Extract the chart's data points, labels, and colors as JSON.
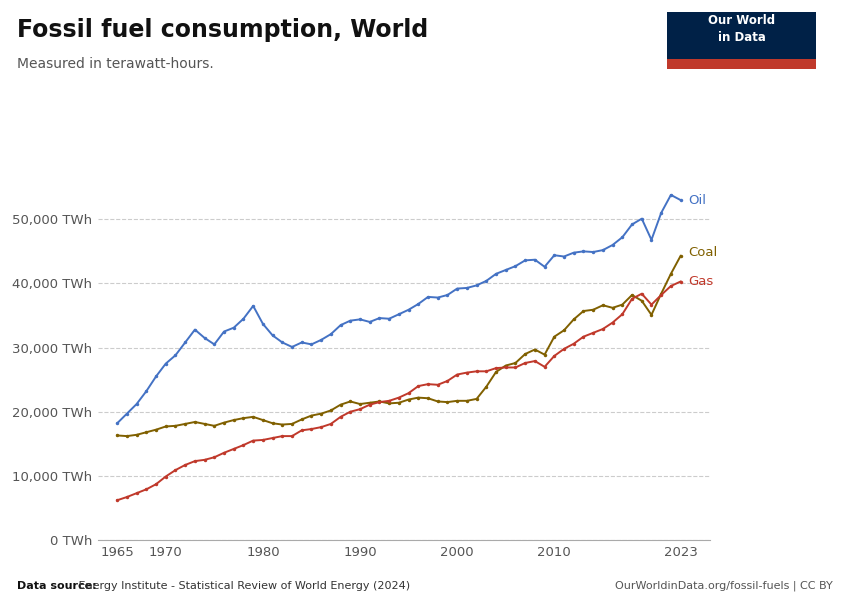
{
  "title": "Fossil fuel consumption, World",
  "subtitle": "Measured in terawatt-hours.",
  "datasource_bold": "Data source:",
  "datasource_rest": " Energy Institute - Statistical Review of World Energy (2024)",
  "url": "OurWorldinData.org/fossil-fuels | CC BY",
  "logo_bg": "#002147",
  "logo_bar": "#c0392b",
  "years": [
    1965,
    1966,
    1967,
    1968,
    1969,
    1970,
    1971,
    1972,
    1973,
    1974,
    1975,
    1976,
    1977,
    1978,
    1979,
    1980,
    1981,
    1982,
    1983,
    1984,
    1985,
    1986,
    1987,
    1988,
    1989,
    1990,
    1991,
    1992,
    1993,
    1994,
    1995,
    1996,
    1997,
    1998,
    1999,
    2000,
    2001,
    2002,
    2003,
    2004,
    2005,
    2006,
    2007,
    2008,
    2009,
    2010,
    2011,
    2012,
    2013,
    2014,
    2015,
    2016,
    2017,
    2018,
    2019,
    2020,
    2021,
    2022,
    2023
  ],
  "oil": [
    18200,
    19700,
    21200,
    23200,
    25500,
    27500,
    28800,
    30800,
    32800,
    31500,
    30500,
    32500,
    33100,
    34500,
    36500,
    33700,
    31900,
    30800,
    30100,
    30800,
    30500,
    31200,
    32100,
    33500,
    34200,
    34400,
    34000,
    34600,
    34500,
    35200,
    35900,
    36800,
    37900,
    37800,
    38200,
    39200,
    39300,
    39700,
    40400,
    41500,
    42100,
    42700,
    43600,
    43700,
    42600,
    44400,
    44200,
    44800,
    45000,
    44900,
    45200,
    46000,
    47200,
    49200,
    50100,
    46800,
    51000,
    53800,
    53000
  ],
  "coal": [
    16300,
    16200,
    16400,
    16800,
    17200,
    17700,
    17800,
    18100,
    18400,
    18100,
    17800,
    18300,
    18700,
    19000,
    19200,
    18700,
    18200,
    18000,
    18100,
    18800,
    19400,
    19700,
    20200,
    21100,
    21600,
    21200,
    21400,
    21600,
    21300,
    21400,
    21900,
    22200,
    22100,
    21600,
    21500,
    21700,
    21700,
    22000,
    23900,
    26200,
    27200,
    27600,
    29000,
    29700,
    28900,
    31700,
    32700,
    34400,
    35700,
    35900,
    36600,
    36200,
    36700,
    38200,
    37300,
    35100,
    38400,
    41500,
    44300
  ],
  "gas": [
    6200,
    6700,
    7300,
    7900,
    8700,
    9900,
    10900,
    11700,
    12300,
    12500,
    12900,
    13600,
    14200,
    14800,
    15500,
    15600,
    15900,
    16200,
    16200,
    17100,
    17300,
    17600,
    18100,
    19200,
    20000,
    20400,
    21100,
    21500,
    21700,
    22200,
    22900,
    24000,
    24300,
    24200,
    24800,
    25800,
    26100,
    26300,
    26300,
    26800,
    26900,
    26900,
    27600,
    27900,
    27000,
    28700,
    29800,
    30600,
    31700,
    32300,
    32900,
    33900,
    35200,
    37600,
    38400,
    36700,
    38200,
    39600,
    40300
  ],
  "oil_color": "#4472c4",
  "coal_color": "#806000",
  "gas_color": "#c0392b",
  "bg_color": "#ffffff",
  "grid_color": "#cccccc",
  "ylim": [
    0,
    58000
  ],
  "yticks": [
    0,
    10000,
    20000,
    30000,
    40000,
    50000
  ],
  "ytick_labels": [
    "0 TWh",
    "10,000 TWh",
    "20,000 TWh",
    "30,000 TWh",
    "40,000 TWh",
    "50,000 TWh"
  ],
  "xticks": [
    1965,
    1970,
    1980,
    1990,
    2000,
    2010,
    2023
  ],
  "marker_size": 2.5,
  "line_width": 1.4
}
